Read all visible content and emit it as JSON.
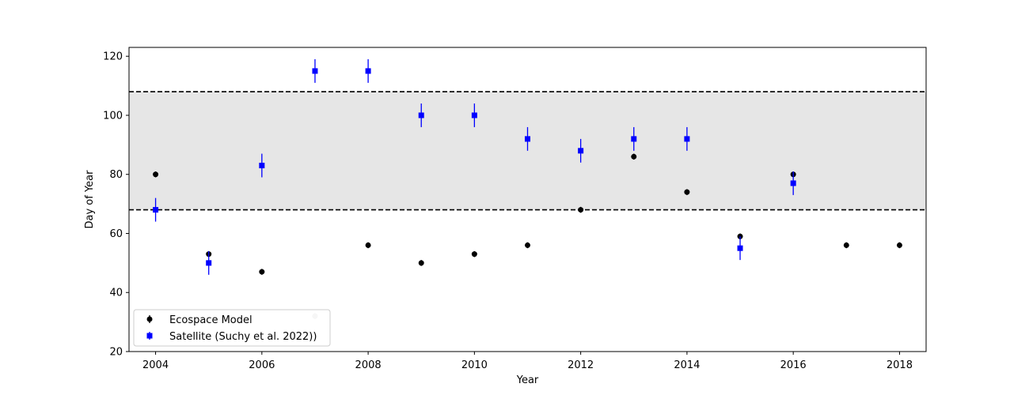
{
  "chart_data": {
    "type": "scatter",
    "xlabel": "Year",
    "ylabel": "Day of Year",
    "xlim": [
      2003.5,
      2018.5
    ],
    "ylim": [
      20,
      123
    ],
    "xticks": [
      2004,
      2006,
      2008,
      2010,
      2012,
      2014,
      2016,
      2018
    ],
    "yticks": [
      20,
      40,
      60,
      80,
      100,
      120
    ],
    "band": {
      "lower": 68,
      "upper": 108,
      "color": "#e6e6e6",
      "line_style": "dashed"
    },
    "series": [
      {
        "name": "Ecospace Model",
        "marker": "circle",
        "color": "#000000",
        "points": [
          {
            "x": 2004,
            "y": 80,
            "err": 1
          },
          {
            "x": 2005,
            "y": 53,
            "err": 1
          },
          {
            "x": 2006,
            "y": 47,
            "err": 1
          },
          {
            "x": 2007,
            "y": 32,
            "err": 1,
            "color": "#cfcfcf"
          },
          {
            "x": 2008,
            "y": 56,
            "err": 1
          },
          {
            "x": 2009,
            "y": 50,
            "err": 1
          },
          {
            "x": 2010,
            "y": 53,
            "err": 1
          },
          {
            "x": 2011,
            "y": 56,
            "err": 1
          },
          {
            "x": 2012,
            "y": 68,
            "err": 1
          },
          {
            "x": 2013,
            "y": 86,
            "err": 1
          },
          {
            "x": 2014,
            "y": 74,
            "err": 1
          },
          {
            "x": 2015,
            "y": 59,
            "err": 1
          },
          {
            "x": 2016,
            "y": 80,
            "err": 1
          },
          {
            "x": 2017,
            "y": 56,
            "err": 1
          },
          {
            "x": 2018,
            "y": 56,
            "err": 1
          }
        ]
      },
      {
        "name": "Satellite (Suchy et al. 2022))",
        "marker": "square",
        "color": "#0000ff",
        "points": [
          {
            "x": 2004,
            "y": 68,
            "err": 4
          },
          {
            "x": 2005,
            "y": 50,
            "err": 4
          },
          {
            "x": 2006,
            "y": 83,
            "err": 4
          },
          {
            "x": 2007,
            "y": 115,
            "err": 4
          },
          {
            "x": 2008,
            "y": 115,
            "err": 4
          },
          {
            "x": 2009,
            "y": 100,
            "err": 4
          },
          {
            "x": 2010,
            "y": 100,
            "err": 4
          },
          {
            "x": 2011,
            "y": 92,
            "err": 4
          },
          {
            "x": 2012,
            "y": 88,
            "err": 4
          },
          {
            "x": 2013,
            "y": 92,
            "err": 4
          },
          {
            "x": 2014,
            "y": 92,
            "err": 4
          },
          {
            "x": 2015,
            "y": 55,
            "err": 4
          },
          {
            "x": 2016,
            "y": 77,
            "err": 4
          }
        ]
      }
    ],
    "legend": {
      "location": "lower-left"
    },
    "grid": false
  }
}
